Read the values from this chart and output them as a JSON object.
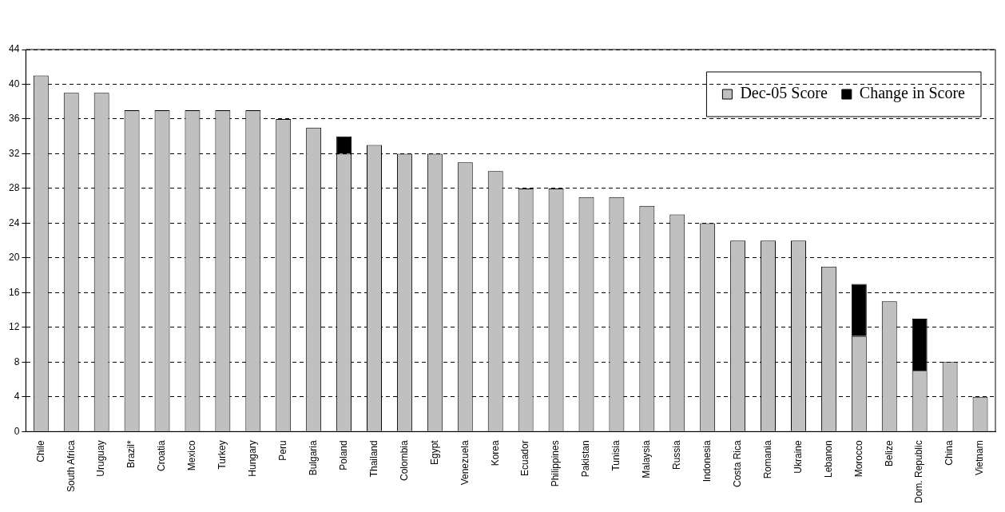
{
  "chart_data": {
    "type": "bar",
    "stacked": true,
    "categories": [
      "Chile",
      "South Africa",
      "Uruguay",
      "Brazil*",
      "Croatia",
      "Mexico",
      "Turkey",
      "Hungary",
      "Peru",
      "Bulgaria",
      "Poland",
      "Thailand",
      "Colombia",
      "Egypt",
      "Venezuela",
      "Korea",
      "Ecuador",
      "Philippines",
      "Pakistan",
      "Tunisia",
      "Malaysia",
      "Russia",
      "Indonesia",
      "Costa Rica",
      "Romania",
      "Ukraine",
      "Lebanon",
      "Morocco",
      "Belize",
      "Dom. Republic",
      "China",
      "Vietnam"
    ],
    "series": [
      {
        "name": "Dec-05 Score",
        "color": "#c0c0c0",
        "values": [
          41,
          39,
          39,
          37,
          37,
          37,
          37,
          37,
          36,
          35,
          32,
          33,
          32,
          32,
          31,
          30,
          28,
          28,
          27,
          27,
          26,
          25,
          24,
          22,
          22,
          22,
          19,
          11,
          15,
          7,
          8,
          4
        ]
      },
      {
        "name": "Change in Score",
        "color": "#000000",
        "values": [
          null,
          null,
          null,
          null,
          null,
          null,
          null,
          null,
          null,
          null,
          2,
          null,
          null,
          null,
          null,
          null,
          null,
          null,
          null,
          null,
          null,
          null,
          null,
          null,
          null,
          null,
          null,
          6,
          null,
          6,
          null,
          null
        ]
      }
    ],
    "ylim": [
      0,
      44
    ],
    "yticks": [
      0,
      4,
      8,
      12,
      16,
      20,
      24,
      28,
      32,
      36,
      40,
      44
    ],
    "grid": "y",
    "legend": "top right"
  }
}
